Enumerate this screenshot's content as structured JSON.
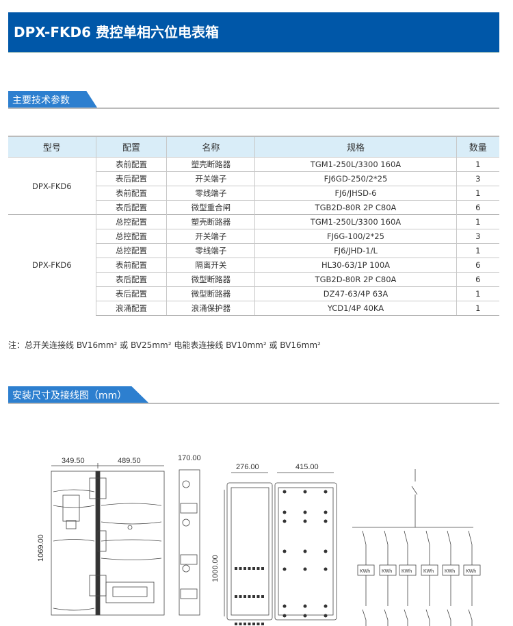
{
  "title": "DPX-FKD6 费控单相六位电表箱",
  "section1": "主要技术参数",
  "table": {
    "headers": [
      "型号",
      "配置",
      "名称",
      "规格",
      "数量"
    ],
    "groups": [
      {
        "model": "DPX-FKD6",
        "rows": [
          [
            "表前配置",
            "塑壳断路器",
            "TGM1-250L/3300 160A",
            "1"
          ],
          [
            "表后配置",
            "开关端子",
            "FJ6GD-250/2*25",
            "3"
          ],
          [
            "表前配置",
            "零线端子",
            "FJ6/JHSD-6",
            "1"
          ],
          [
            "表后配置",
            "微型重合闸",
            "TGB2D-80R 2P C80A",
            "6"
          ]
        ]
      },
      {
        "model": "DPX-FKD6",
        "rows": [
          [
            "总控配置",
            "塑壳断路器",
            "TGM1-250L/3300 160A",
            "1"
          ],
          [
            "总控配置",
            "开关端子",
            "FJ6G-100/2*25",
            "3"
          ],
          [
            "总控配置",
            "零线端子",
            "FJ6/JHD-1/L",
            "1"
          ],
          [
            "表前配置",
            "隔离开关",
            "HL30-63/1P 100A",
            "6"
          ],
          [
            "表后配置",
            "微型断路器",
            "TGB2D-80R 2P C80A",
            "6"
          ],
          [
            "表后配置",
            "微型断路器",
            "DZ47-63/4P 63A",
            "1"
          ],
          [
            "浪涌配置",
            "浪涌保护器",
            "YCD1/4P 40KA",
            "1"
          ]
        ]
      }
    ]
  },
  "note": "注：总开关连接线 BV16mm² 或 BV25mm² 电能表连接线 BV10mm² 或 BV16mm²",
  "section2": "安装尺寸及接线图（mm）",
  "drawing": {
    "w1": "349.50",
    "w2": "489.50",
    "h1": "1069.00",
    "depth": "170.00",
    "w3": "276.00",
    "w4": "415.00",
    "h2": "1000.00",
    "meter": "KWh"
  },
  "colors": {
    "banner": "#0057a8",
    "tab": "#2d7fcf",
    "header_bg": "#d9edf8"
  }
}
